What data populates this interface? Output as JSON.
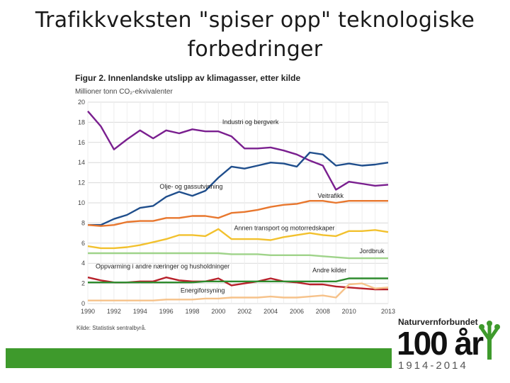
{
  "slide": {
    "title": "Trafikkveksten \"spiser opp\" teknologiske forbedringer"
  },
  "logo": {
    "organization": "Naturvernforbundet",
    "anniversary": "100 år",
    "years": "1914-2014"
  },
  "colors": {
    "industri": "#7a1f8f",
    "olje": "#1f4e8c",
    "veitrafikk": "#e8772e",
    "annen": "#f2c12e",
    "jordbruk": "#9fd38a",
    "oppvarming": "#b7202a",
    "andre": "#2e8b2e",
    "energi": "#f6c28a",
    "grid": "#d9d9d9",
    "bar": "#3e9a2c"
  },
  "chart_data": {
    "type": "line",
    "title": "Figur 2. Innenlandske utslipp av klimagasser, etter kilde",
    "ylabel": "Millioner tonn CO₂-ekvivalenter",
    "source": "Kilde: Statistisk sentralbyrå.",
    "ylim": [
      0,
      20
    ],
    "yticks": [
      0,
      2,
      4,
      6,
      8,
      10,
      12,
      14,
      16,
      18,
      20
    ],
    "xlim": [
      1990,
      2013
    ],
    "xticks": [
      1990,
      1992,
      1994,
      1996,
      1998,
      2000,
      2002,
      2004,
      2006,
      2008,
      2010,
      2013
    ],
    "x": [
      1990,
      1991,
      1992,
      1993,
      1994,
      1995,
      1996,
      1997,
      1998,
      1999,
      2000,
      2001,
      2002,
      2003,
      2004,
      2005,
      2006,
      2007,
      2008,
      2009,
      2010,
      2011,
      2012,
      2013
    ],
    "series": [
      {
        "key": "industri",
        "name": "Industri og bergverk",
        "values": [
          19.1,
          17.6,
          15.3,
          16.3,
          17.2,
          16.4,
          17.2,
          16.9,
          17.3,
          17.1,
          17.1,
          16.6,
          15.4,
          15.4,
          15.5,
          15.2,
          14.8,
          14.2,
          13.7,
          11.3,
          12.1,
          11.9,
          11.7,
          11.8
        ]
      },
      {
        "key": "olje",
        "name": "Olje- og gassutvinning",
        "values": [
          7.8,
          7.8,
          8.4,
          8.8,
          9.5,
          9.7,
          10.6,
          11.1,
          10.7,
          11.2,
          12.5,
          13.6,
          13.4,
          13.7,
          14.0,
          13.9,
          13.6,
          15.0,
          14.8,
          13.7,
          13.9,
          13.7,
          13.8,
          14.0
        ]
      },
      {
        "key": "veitrafikk",
        "name": "Veitrafikk",
        "values": [
          7.8,
          7.7,
          7.8,
          8.1,
          8.2,
          8.2,
          8.5,
          8.5,
          8.7,
          8.7,
          8.5,
          9.0,
          9.1,
          9.3,
          9.6,
          9.8,
          9.9,
          10.2,
          10.2,
          10.0,
          10.2,
          10.2,
          10.2,
          10.2
        ]
      },
      {
        "key": "annen",
        "name": "Annen transport og motorredskaper",
        "values": [
          5.7,
          5.5,
          5.5,
          5.6,
          5.8,
          6.1,
          6.4,
          6.8,
          6.8,
          6.7,
          7.4,
          6.4,
          6.4,
          6.4,
          6.3,
          6.6,
          6.8,
          7.0,
          6.8,
          6.7,
          7.2,
          7.2,
          7.3,
          7.1
        ]
      },
      {
        "key": "jordbruk",
        "name": "Jordbruk",
        "values": [
          5.0,
          5.0,
          5.0,
          5.0,
          5.0,
          5.0,
          5.0,
          5.0,
          5.0,
          5.0,
          5.0,
          4.9,
          4.9,
          4.9,
          4.8,
          4.8,
          4.8,
          4.8,
          4.7,
          4.6,
          4.5,
          4.5,
          4.5,
          4.5
        ]
      },
      {
        "key": "oppvarming",
        "name": "Oppvarming i andre næringer og husholdninger",
        "values": [
          2.6,
          2.3,
          2.1,
          2.1,
          2.2,
          2.2,
          2.6,
          2.3,
          2.2,
          2.2,
          2.5,
          1.8,
          2.0,
          2.2,
          2.5,
          2.2,
          2.1,
          1.9,
          1.9,
          1.7,
          1.6,
          1.5,
          1.4,
          1.4
        ]
      },
      {
        "key": "andre",
        "name": "Andre kilder",
        "values": [
          2.1,
          2.1,
          2.1,
          2.1,
          2.1,
          2.1,
          2.1,
          2.1,
          2.1,
          2.2,
          2.2,
          2.2,
          2.2,
          2.2,
          2.2,
          2.2,
          2.2,
          2.2,
          2.2,
          2.2,
          2.5,
          2.5,
          2.5,
          2.5
        ]
      },
      {
        "key": "energi",
        "name": "Energiforsyning",
        "values": [
          0.3,
          0.3,
          0.3,
          0.3,
          0.3,
          0.3,
          0.4,
          0.4,
          0.4,
          0.5,
          0.5,
          0.6,
          0.6,
          0.6,
          0.7,
          0.6,
          0.6,
          0.7,
          0.8,
          0.6,
          1.9,
          2.0,
          1.5,
          1.6
        ]
      }
    ]
  }
}
